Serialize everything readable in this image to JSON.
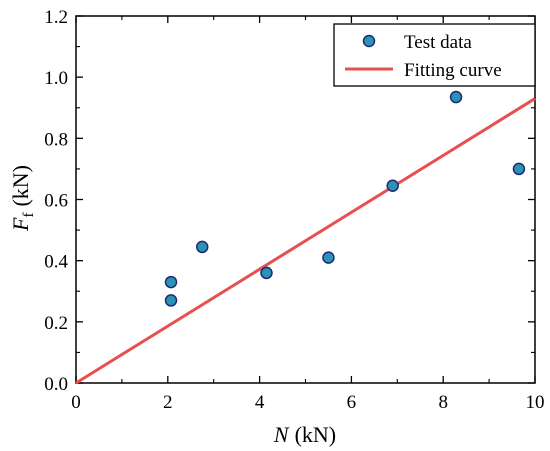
{
  "chart_data": {
    "type": "scatter",
    "title": "",
    "xlabel": {
      "var": "N",
      "unit": "(kN)"
    },
    "ylabel": {
      "var": "F",
      "sub": "f",
      "unit": "(kN)"
    },
    "xlim": [
      0,
      10
    ],
    "ylim": [
      0.0,
      1.2
    ],
    "xticks": [
      "0",
      "2",
      "4",
      "6",
      "8",
      "10"
    ],
    "yticks": [
      "0.0",
      "0.2",
      "0.4",
      "0.6",
      "0.8",
      "1.0",
      "1.2"
    ],
    "grid": false,
    "legend_position": "top-right",
    "series": [
      {
        "name": "Test data",
        "kind": "scatter",
        "color": "#2a93b5",
        "edge_color": "#1d2a73",
        "points": [
          {
            "x": 2.07,
            "y": 0.33
          },
          {
            "x": 2.07,
            "y": 0.27
          },
          {
            "x": 2.75,
            "y": 0.445
          },
          {
            "x": 4.15,
            "y": 0.36
          },
          {
            "x": 5.5,
            "y": 0.41
          },
          {
            "x": 6.9,
            "y": 0.645
          },
          {
            "x": 8.28,
            "y": 0.935
          },
          {
            "x": 9.65,
            "y": 0.7
          }
        ]
      },
      {
        "name": "Fitting curve",
        "kind": "line",
        "color": "#e8504f",
        "points": [
          {
            "x": 0,
            "y": 0.0
          },
          {
            "x": 10,
            "y": 0.93
          }
        ]
      }
    ]
  }
}
